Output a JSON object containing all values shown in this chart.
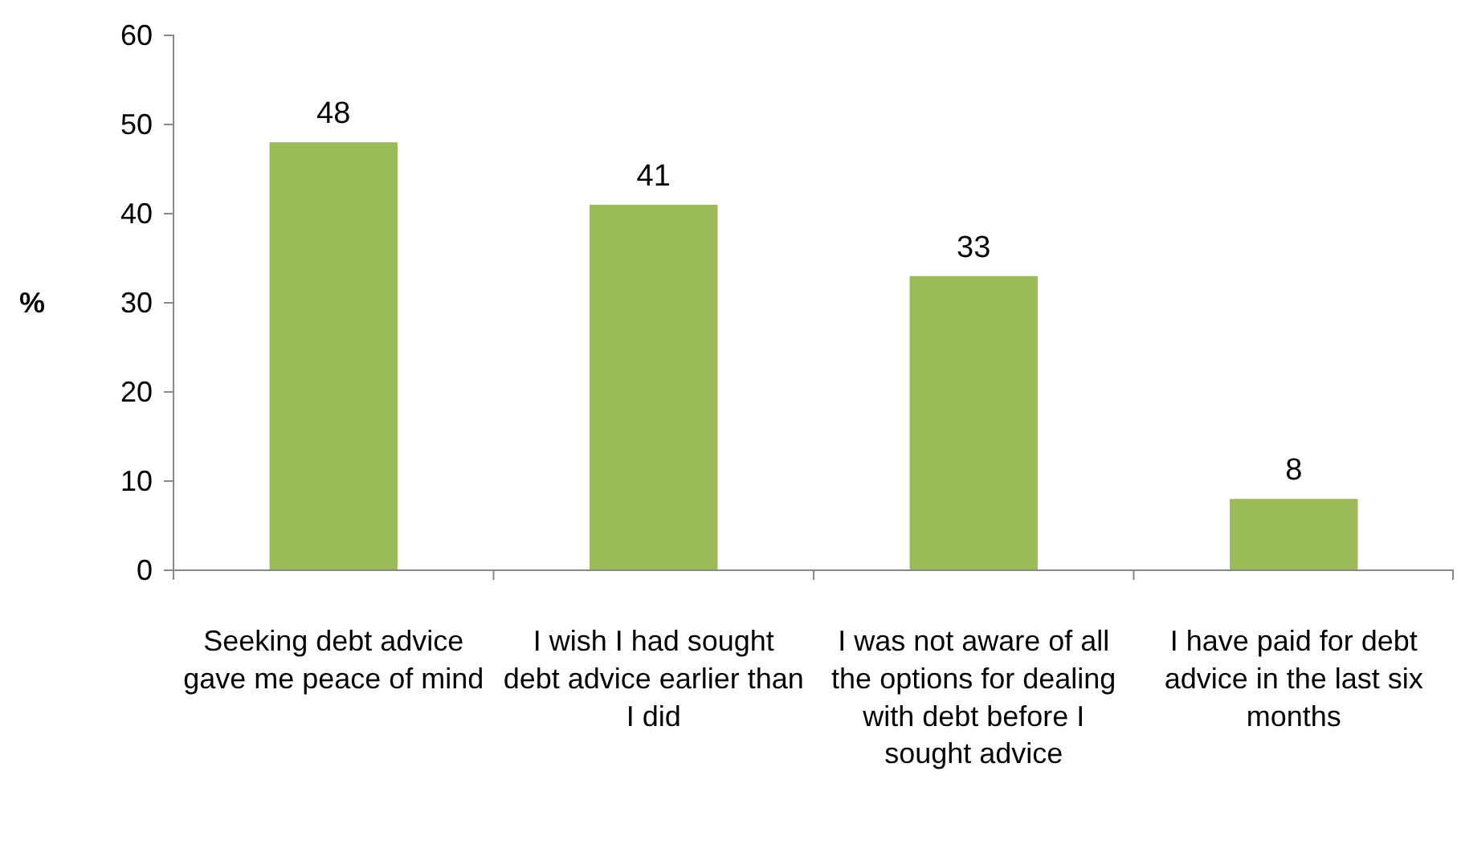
{
  "chart_data": {
    "type": "bar",
    "ylabel": "%",
    "categories": [
      "Seeking debt advice gave me peace of mind",
      "I wish I had sought debt advice earlier than I did",
      "I was not aware of all the options for dealing with debt before I sought advice",
      "I have paid for debt advice in the last six months"
    ],
    "values": [
      48,
      41,
      33,
      8
    ],
    "color": "#9bbb59",
    "ylim": [
      0,
      60
    ],
    "yticks": [
      0,
      10,
      20,
      30,
      40,
      50,
      60
    ],
    "grid": false,
    "data_labels": true
  }
}
